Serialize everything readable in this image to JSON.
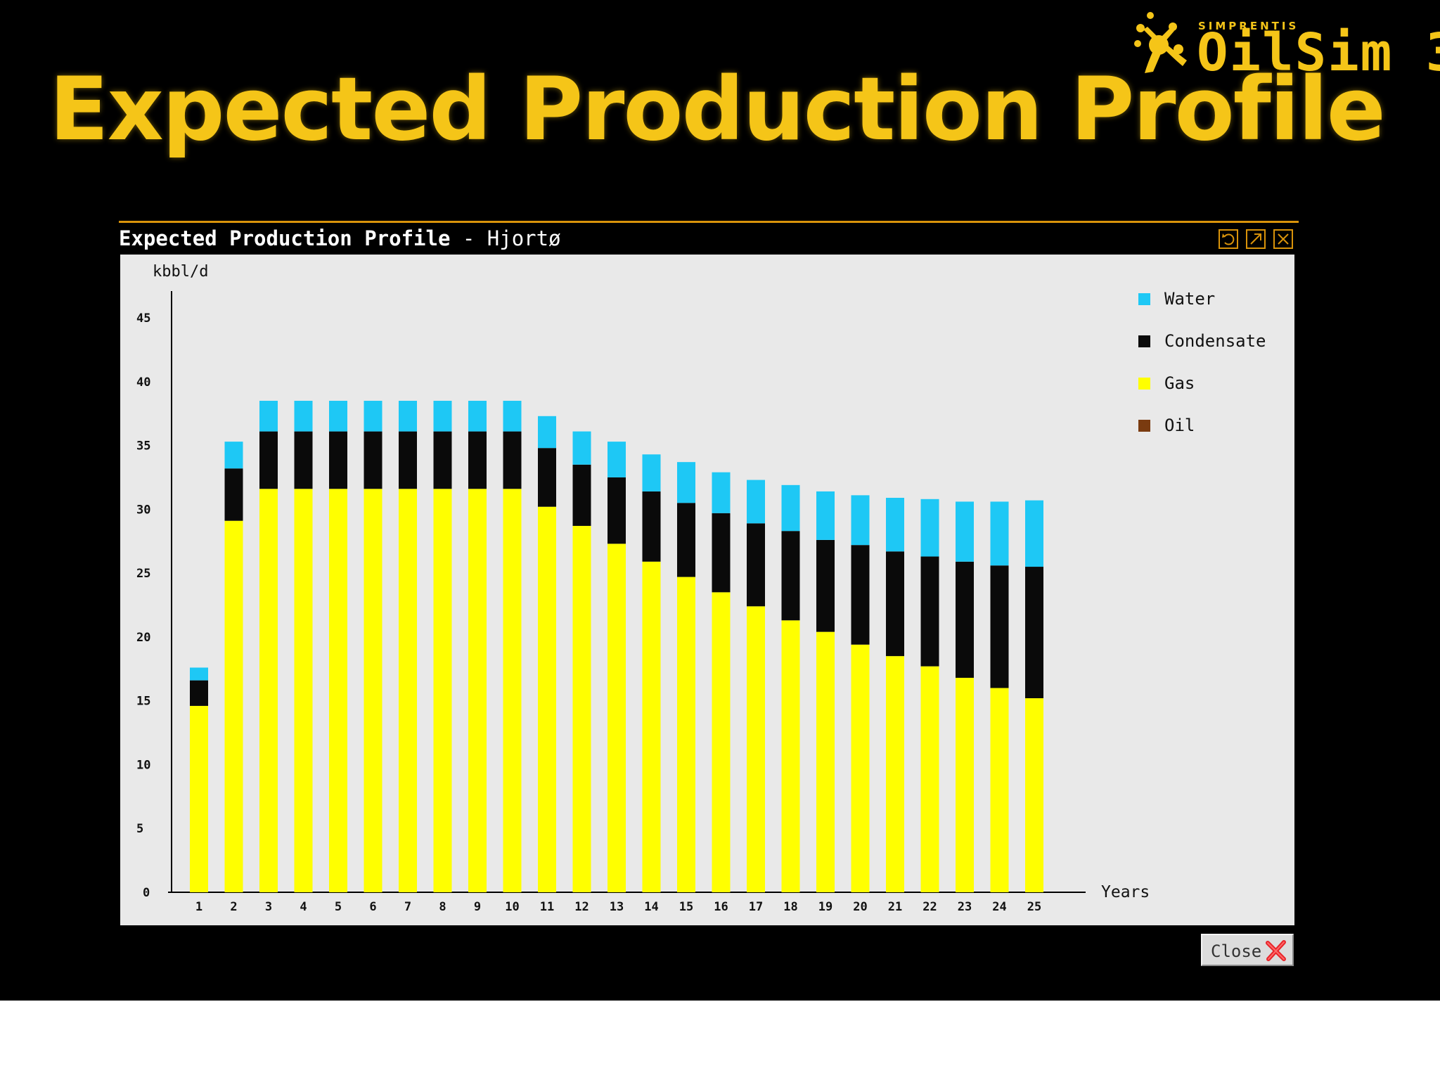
{
  "slide": {
    "title": "Expected Production Profile"
  },
  "logo": {
    "brand": "SIMPRENTIS",
    "product": "OilSim 3"
  },
  "window": {
    "title_main": "Expected Production Profile",
    "title_sub": " - Hjortø",
    "close_label": "Close"
  },
  "colors": {
    "accent": "#f5c518",
    "water": "#1ec8f5",
    "condensate": "#0a0a0a",
    "gas": "#ffff00",
    "oil": "#7a3b10",
    "panel": "#e9e9e9"
  },
  "chart_data": {
    "type": "bar",
    "stacked": true,
    "ylabel": "kbbl/d",
    "xlabel": "Years",
    "ylim": [
      0,
      45
    ],
    "yticks": [
      0,
      5,
      10,
      15,
      20,
      25,
      30,
      35,
      40,
      45
    ],
    "legend_position": "right",
    "categories": [
      "1",
      "2",
      "3",
      "4",
      "5",
      "6",
      "7",
      "8",
      "9",
      "10",
      "11",
      "12",
      "13",
      "14",
      "15",
      "16",
      "17",
      "18",
      "19",
      "20",
      "21",
      "22",
      "23",
      "24",
      "25"
    ],
    "series": [
      {
        "name": "Oil",
        "color": "#7a3b10",
        "values": [
          0,
          0,
          0,
          0,
          0,
          0,
          0,
          0,
          0,
          0,
          0,
          0,
          0,
          0,
          0,
          0,
          0,
          0,
          0,
          0,
          0,
          0,
          0,
          0,
          0
        ]
      },
      {
        "name": "Gas",
        "color": "#ffff00",
        "values": [
          14.6,
          29.1,
          31.6,
          31.6,
          31.6,
          31.6,
          31.6,
          31.6,
          31.6,
          31.6,
          30.2,
          28.7,
          27.3,
          25.9,
          24.7,
          23.5,
          22.4,
          21.3,
          20.4,
          19.4,
          18.5,
          17.7,
          16.8,
          16.0,
          15.2
        ]
      },
      {
        "name": "Condensate",
        "color": "#0a0a0a",
        "values": [
          2.0,
          4.1,
          4.5,
          4.5,
          4.5,
          4.5,
          4.5,
          4.5,
          4.5,
          4.5,
          4.6,
          4.8,
          5.2,
          5.5,
          5.8,
          6.2,
          6.5,
          7.0,
          7.2,
          7.8,
          8.2,
          8.6,
          9.1,
          9.6,
          10.3
        ]
      },
      {
        "name": "Water",
        "color": "#1ec8f5",
        "values": [
          1.0,
          2.1,
          2.4,
          2.4,
          2.4,
          2.4,
          2.4,
          2.4,
          2.4,
          2.4,
          2.5,
          2.6,
          2.8,
          2.9,
          3.2,
          3.2,
          3.4,
          3.6,
          3.8,
          3.9,
          4.2,
          4.5,
          4.7,
          5.0,
          5.2
        ]
      }
    ],
    "legend": [
      "Water",
      "Condensate",
      "Gas",
      "Oil"
    ]
  }
}
